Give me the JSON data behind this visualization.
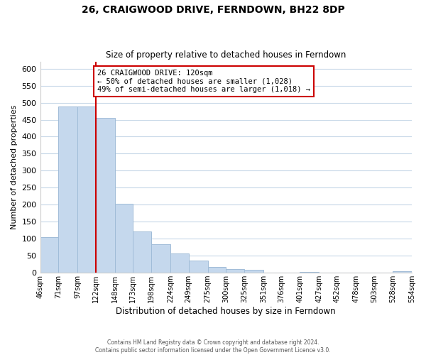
{
  "title": "26, CRAIGWOOD DRIVE, FERNDOWN, BH22 8DP",
  "subtitle": "Size of property relative to detached houses in Ferndown",
  "xlabel": "Distribution of detached houses by size in Ferndown",
  "ylabel": "Number of detached properties",
  "bar_edges": [
    46,
    71,
    97,
    122,
    148,
    173,
    198,
    224,
    249,
    275,
    300,
    325,
    351,
    376,
    401,
    427,
    452,
    478,
    503,
    528,
    554
  ],
  "bar_heights": [
    105,
    488,
    488,
    455,
    202,
    121,
    83,
    57,
    36,
    16,
    10,
    8,
    0,
    0,
    3,
    0,
    0,
    0,
    0,
    5
  ],
  "bar_color": "#c5d8ed",
  "bar_edge_color": "#a0bcd8",
  "vline_x": 122,
  "vline_color": "#cc0000",
  "annotation_line1": "26 CRAIGWOOD DRIVE: 120sqm",
  "annotation_line2": "← 50% of detached houses are smaller (1,028)",
  "annotation_line3": "49% of semi-detached houses are larger (1,018) →",
  "annotation_box_color": "#ffffff",
  "annotation_box_edge": "#cc0000",
  "ylim": [
    0,
    620
  ],
  "yticks": [
    0,
    50,
    100,
    150,
    200,
    250,
    300,
    350,
    400,
    450,
    500,
    550,
    600
  ],
  "tick_labels": [
    "46sqm",
    "71sqm",
    "97sqm",
    "122sqm",
    "148sqm",
    "173sqm",
    "198sqm",
    "224sqm",
    "249sqm",
    "275sqm",
    "300sqm",
    "325sqm",
    "351sqm",
    "376sqm",
    "401sqm",
    "427sqm",
    "452sqm",
    "478sqm",
    "503sqm",
    "528sqm",
    "554sqm"
  ],
  "footer_text": "Contains HM Land Registry data © Crown copyright and database right 2024.\nContains public sector information licensed under the Open Government Licence v3.0.",
  "bg_color": "#ffffff",
  "grid_color": "#c8d8e8"
}
